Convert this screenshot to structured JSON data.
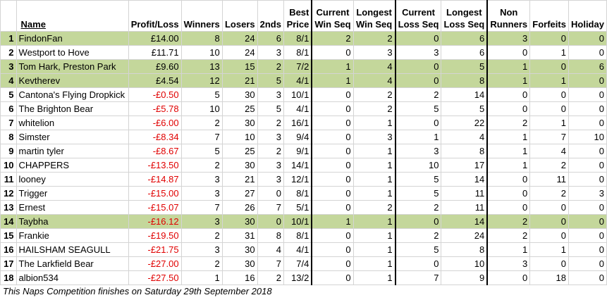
{
  "headers": {
    "rank": "",
    "name": "Name",
    "profit": "Profit/Loss",
    "winners": "Winners",
    "losers": "Losers",
    "seconds": "2nds",
    "best_price": [
      "Best",
      "Price"
    ],
    "current_win": [
      "Current",
      "Win Seq"
    ],
    "longest_win": [
      "Longest",
      "Win Seq"
    ],
    "current_loss": [
      "Current",
      "Loss Seq"
    ],
    "longest_loss": [
      "Longest",
      "Loss Seq"
    ],
    "non_runners": [
      "Non",
      "Runners"
    ],
    "forfeits": "Forfeits",
    "holiday": "Holiday"
  },
  "rows": [
    {
      "rank": "1",
      "name": "FindonFan",
      "profit": "£14.00",
      "winners": "8",
      "losers": "24",
      "seconds": "6",
      "best": "8/1",
      "cw": "2",
      "lw": "2",
      "cl": "0",
      "ll": "6",
      "nr": "3",
      "ff": "0",
      "hol": "0",
      "highlight": true,
      "negative": false
    },
    {
      "rank": "2",
      "name": "Westport to Hove",
      "profit": "£11.71",
      "winners": "10",
      "losers": "24",
      "seconds": "3",
      "best": "8/1",
      "cw": "0",
      "lw": "3",
      "cl": "3",
      "ll": "6",
      "nr": "0",
      "ff": "1",
      "hol": "0",
      "highlight": false,
      "negative": false
    },
    {
      "rank": "3",
      "name": "Tom Hark, Preston Park",
      "profit": "£9.60",
      "winners": "13",
      "losers": "15",
      "seconds": "2",
      "best": "7/2",
      "cw": "1",
      "lw": "4",
      "cl": "0",
      "ll": "5",
      "nr": "1",
      "ff": "0",
      "hol": "6",
      "highlight": true,
      "negative": false
    },
    {
      "rank": "4",
      "name": "Kevtherev",
      "profit": "£4.54",
      "winners": "12",
      "losers": "21",
      "seconds": "5",
      "best": "4/1",
      "cw": "1",
      "lw": "4",
      "cl": "0",
      "ll": "8",
      "nr": "1",
      "ff": "1",
      "hol": "0",
      "highlight": true,
      "negative": false
    },
    {
      "rank": "5",
      "name": "Cantona's Flying Dropkick",
      "profit": "-£0.50",
      "winners": "5",
      "losers": "30",
      "seconds": "3",
      "best": "10/1",
      "cw": "0",
      "lw": "2",
      "cl": "2",
      "ll": "14",
      "nr": "0",
      "ff": "0",
      "hol": "0",
      "highlight": false,
      "negative": true
    },
    {
      "rank": "6",
      "name": "The Brighton Bear",
      "profit": "-£5.78",
      "winners": "10",
      "losers": "25",
      "seconds": "5",
      "best": "4/1",
      "cw": "0",
      "lw": "2",
      "cl": "5",
      "ll": "5",
      "nr": "0",
      "ff": "0",
      "hol": "0",
      "highlight": false,
      "negative": true
    },
    {
      "rank": "7",
      "name": "whitelion",
      "profit": "-£6.00",
      "winners": "2",
      "losers": "30",
      "seconds": "2",
      "best": "16/1",
      "cw": "0",
      "lw": "1",
      "cl": "0",
      "ll": "22",
      "nr": "2",
      "ff": "1",
      "hol": "0",
      "highlight": false,
      "negative": true
    },
    {
      "rank": "8",
      "name": "Simster",
      "profit": "-£8.34",
      "winners": "7",
      "losers": "10",
      "seconds": "3",
      "best": "9/4",
      "cw": "0",
      "lw": "3",
      "cl": "1",
      "ll": "4",
      "nr": "1",
      "ff": "7",
      "hol": "10",
      "highlight": false,
      "negative": true
    },
    {
      "rank": "9",
      "name": "martin tyler",
      "profit": "-£8.67",
      "winners": "5",
      "losers": "25",
      "seconds": "2",
      "best": "9/1",
      "cw": "0",
      "lw": "1",
      "cl": "3",
      "ll": "8",
      "nr": "1",
      "ff": "4",
      "hol": "0",
      "highlight": false,
      "negative": true
    },
    {
      "rank": "10",
      "name": "CHAPPERS",
      "profit": "-£13.50",
      "winners": "2",
      "losers": "30",
      "seconds": "3",
      "best": "14/1",
      "cw": "0",
      "lw": "1",
      "cl": "10",
      "ll": "17",
      "nr": "1",
      "ff": "2",
      "hol": "0",
      "highlight": false,
      "negative": true
    },
    {
      "rank": "11",
      "name": "looney",
      "profit": "-£14.87",
      "winners": "3",
      "losers": "21",
      "seconds": "3",
      "best": "12/1",
      "cw": "0",
      "lw": "1",
      "cl": "5",
      "ll": "14",
      "nr": "0",
      "ff": "11",
      "hol": "0",
      "highlight": false,
      "negative": true
    },
    {
      "rank": "12",
      "name": "Trigger",
      "profit": "-£15.00",
      "winners": "3",
      "losers": "27",
      "seconds": "0",
      "best": "8/1",
      "cw": "0",
      "lw": "1",
      "cl": "5",
      "ll": "11",
      "nr": "0",
      "ff": "2",
      "hol": "3",
      "highlight": false,
      "negative": true
    },
    {
      "rank": "13",
      "name": "Ernest",
      "profit": "-£15.07",
      "winners": "7",
      "losers": "26",
      "seconds": "7",
      "best": "5/1",
      "cw": "0",
      "lw": "2",
      "cl": "2",
      "ll": "11",
      "nr": "0",
      "ff": "0",
      "hol": "0",
      "highlight": false,
      "negative": true
    },
    {
      "rank": "14",
      "name": "Taybha",
      "profit": "-£16.12",
      "winners": "3",
      "losers": "30",
      "seconds": "0",
      "best": "10/1",
      "cw": "1",
      "lw": "1",
      "cl": "0",
      "ll": "14",
      "nr": "2",
      "ff": "0",
      "hol": "0",
      "highlight": true,
      "negative": true
    },
    {
      "rank": "15",
      "name": "Frankie",
      "profit": "-£19.50",
      "winners": "2",
      "losers": "31",
      "seconds": "8",
      "best": "8/1",
      "cw": "0",
      "lw": "1",
      "cl": "2",
      "ll": "24",
      "nr": "2",
      "ff": "0",
      "hol": "0",
      "highlight": false,
      "negative": true
    },
    {
      "rank": "16",
      "name": "HAILSHAM SEAGULL",
      "profit": "-£21.75",
      "winners": "3",
      "losers": "30",
      "seconds": "4",
      "best": "4/1",
      "cw": "0",
      "lw": "1",
      "cl": "5",
      "ll": "8",
      "nr": "1",
      "ff": "1",
      "hol": "0",
      "highlight": false,
      "negative": true
    },
    {
      "rank": "17",
      "name": "The Larkfield Bear",
      "profit": "-£27.00",
      "winners": "2",
      "losers": "30",
      "seconds": "7",
      "best": "7/4",
      "cw": "0",
      "lw": "1",
      "cl": "0",
      "ll": "10",
      "nr": "3",
      "ff": "0",
      "hol": "0",
      "highlight": false,
      "negative": true
    },
    {
      "rank": "18",
      "name": "albion534",
      "profit": "-£27.50",
      "winners": "1",
      "losers": "16",
      "seconds": "2",
      "best": "13/2",
      "cw": "0",
      "lw": "1",
      "cl": "7",
      "ll": "9",
      "nr": "0",
      "ff": "18",
      "hol": "0",
      "highlight": false,
      "negative": true
    }
  ],
  "footnote": "This Naps Competition finishes on Saturday 29th September 2018"
}
